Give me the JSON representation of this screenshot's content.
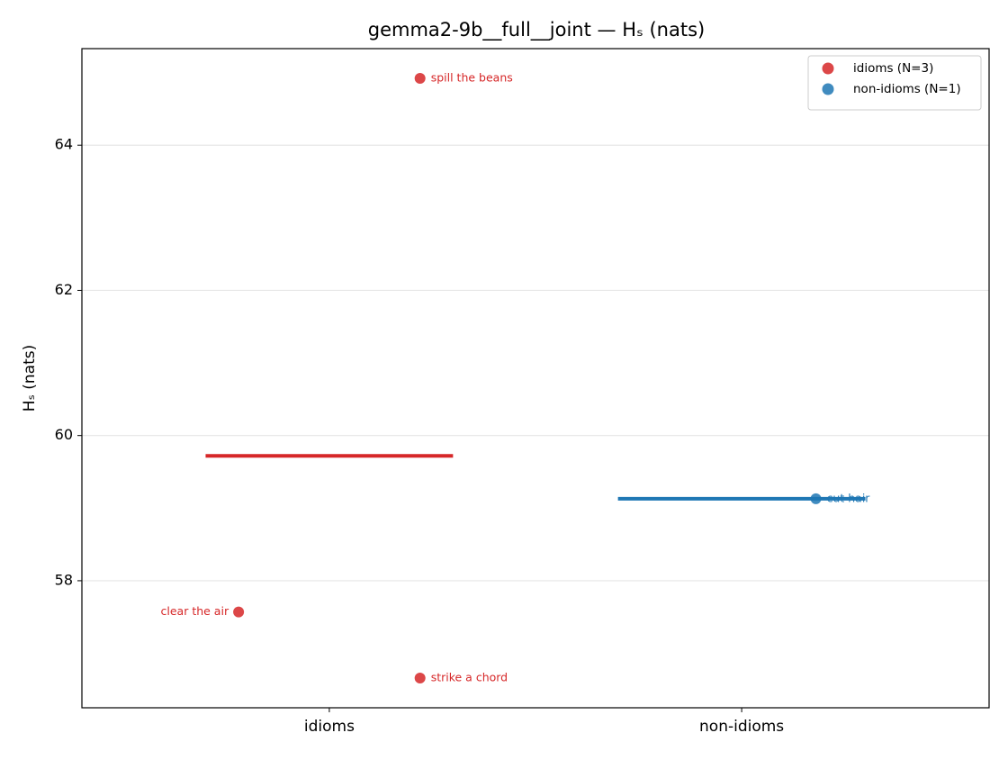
{
  "chart_data": {
    "type": "strip",
    "title": "gemma2-9b__full__joint — Hₛ (nats)",
    "ylabel": "Hₛ (nats)",
    "categories": [
      "idioms",
      "non-idioms"
    ],
    "xlim": [
      -0.6,
      1.6
    ],
    "ylim": [
      56.25,
      65.33
    ],
    "yticks": [
      58,
      60,
      62,
      64
    ],
    "grid": true,
    "legend": "upper right",
    "series": [
      {
        "name": "idioms (N=3)",
        "color": "#d62728",
        "labels": [
          "spill the beans",
          "clear the air",
          "strike a chord"
        ],
        "x": [
          0.22,
          -0.22,
          0.22
        ],
        "values": [
          64.92,
          57.57,
          56.66
        ],
        "mean": 59.72
      },
      {
        "name": "non-idioms (N=1)",
        "color": "#1f77b4",
        "labels": [
          "cut hair"
        ],
        "x": [
          1.18
        ],
        "values": [
          59.13
        ],
        "mean": 59.13
      }
    ]
  }
}
